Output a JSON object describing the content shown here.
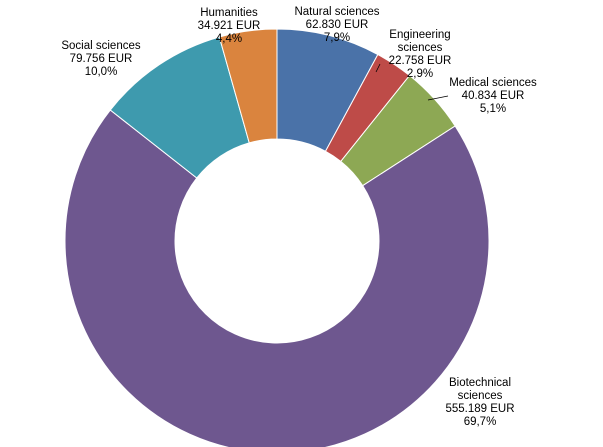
{
  "chart_data": {
    "type": "pie",
    "variant": "donut",
    "title": "",
    "unit": "EUR",
    "series": [
      {
        "name": "Natural sciences",
        "label_lines": [
          "Natural  sciences"
        ],
        "value": 62830,
        "value_text": "62.830 EUR",
        "percent_text": "7,9%",
        "color": "#4A72A8"
      },
      {
        "name": "Engineering sciences",
        "label_lines": [
          "Engineering",
          "sciences"
        ],
        "value": 22758,
        "value_text": "22.758 EUR",
        "percent_text": "2,9%",
        "color": "#BE4B48"
      },
      {
        "name": "Medical sciences",
        "label_lines": [
          "Medical sciences"
        ],
        "value": 40834,
        "value_text": "40.834 EUR",
        "percent_text": "5,1%",
        "color": "#8DA854"
      },
      {
        "name": "Biotechnical sciences",
        "label_lines": [
          "Biotechnical",
          "sciences"
        ],
        "value": 555189,
        "value_text": "555.189 EUR",
        "percent_text": "69,7%",
        "color": "#6E578F"
      },
      {
        "name": "Social sciences",
        "label_lines": [
          "Social sciences"
        ],
        "value": 79756,
        "value_text": "79.756 EUR",
        "percent_text": "10,0%",
        "color": "#3E9AAE"
      },
      {
        "name": "Humanities",
        "label_lines": [
          "Humanities"
        ],
        "value": 34921,
        "value_text": "34.921 EUR",
        "percent_text": "4,4%",
        "color": "#DA843E"
      }
    ]
  }
}
